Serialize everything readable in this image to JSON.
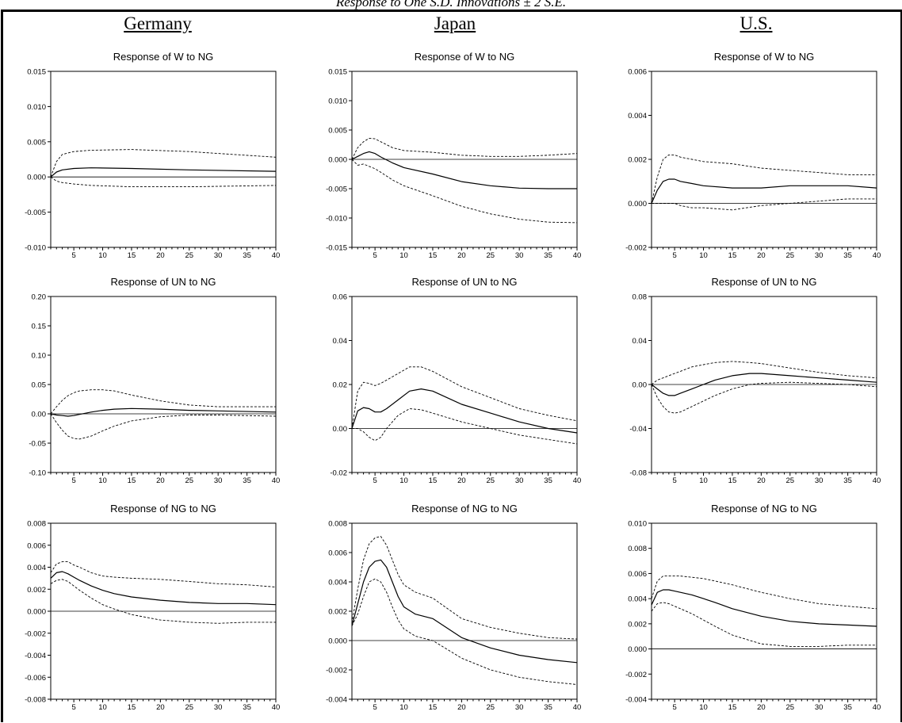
{
  "figure_title": "Response to One S.D. Innovations ± 2 S.E.",
  "countries": [
    "Germany",
    "Japan",
    "U.S."
  ],
  "chart_data": [
    {
      "type": "line",
      "country": "Germany",
      "title": "Response of W to NG",
      "xlim": [
        1,
        40
      ],
      "ylim": [
        -0.01,
        0.015
      ],
      "x_ticks": [
        5,
        10,
        15,
        20,
        25,
        30,
        35,
        40
      ],
      "y_ticks": [
        -0.01,
        -0.005,
        0,
        0.005,
        0.01,
        0.015
      ],
      "y_tick_labels": [
        "-0.010",
        "-0.005",
        "0.000",
        "0.005",
        "0.010",
        "0.015"
      ],
      "x": [
        1,
        2,
        3,
        5,
        8,
        15,
        25,
        40
      ],
      "series": [
        {
          "style": "solid",
          "values": [
            0,
            0.0007,
            0.001,
            0.0012,
            0.0013,
            0.0012,
            0.001,
            0.0008
          ]
        },
        {
          "style": "dashed",
          "values": [
            0,
            0.0022,
            0.0032,
            0.0036,
            0.0038,
            0.0039,
            0.0036,
            0.0028
          ]
        },
        {
          "style": "dashed",
          "values": [
            0,
            -0.0006,
            -0.0008,
            -0.001,
            -0.0012,
            -0.0014,
            -0.0014,
            -0.0012
          ]
        }
      ]
    },
    {
      "type": "line",
      "country": "Japan",
      "title": "Response of W to NG",
      "xlim": [
        1,
        40
      ],
      "ylim": [
        -0.015,
        0.015
      ],
      "x_ticks": [
        5,
        10,
        15,
        20,
        25,
        30,
        35,
        40
      ],
      "y_ticks": [
        -0.015,
        -0.01,
        -0.005,
        0,
        0.005,
        0.01,
        0.015
      ],
      "y_tick_labels": [
        "-0.015",
        "-0.010",
        "-0.005",
        "0.000",
        "0.005",
        "0.010",
        "0.015"
      ],
      "x": [
        1,
        2,
        3,
        4,
        5,
        6,
        8,
        10,
        15,
        20,
        25,
        30,
        35,
        40
      ],
      "series": [
        {
          "style": "solid",
          "values": [
            0,
            0.0005,
            0.001,
            0.0013,
            0.001,
            0.0004,
            -0.0006,
            -0.0014,
            -0.0025,
            -0.0038,
            -0.0045,
            -0.0049,
            -0.005,
            -0.005
          ]
        },
        {
          "style": "dashed",
          "values": [
            0,
            0.002,
            0.003,
            0.0036,
            0.0035,
            0.003,
            0.002,
            0.0015,
            0.0012,
            0.0007,
            0.0005,
            0.0005,
            0.0007,
            0.001
          ]
        },
        {
          "style": "dashed",
          "values": [
            0,
            -0.001,
            -0.0008,
            -0.0012,
            -0.0016,
            -0.0022,
            -0.0035,
            -0.0045,
            -0.0062,
            -0.008,
            -0.0093,
            -0.0102,
            -0.0107,
            -0.0108
          ]
        }
      ]
    },
    {
      "type": "line",
      "country": "U.S.",
      "title": "Response of W to NG",
      "xlim": [
        1,
        40
      ],
      "ylim": [
        -0.002,
        0.006
      ],
      "x_ticks": [
        5,
        10,
        15,
        20,
        25,
        30,
        35,
        40
      ],
      "y_ticks": [
        -0.002,
        0,
        0.002,
        0.004,
        0.006
      ],
      "y_tick_labels": [
        "-0.002",
        "0.000",
        "0.002",
        "0.004",
        "0.006"
      ],
      "x": [
        1,
        2,
        3,
        4,
        5,
        6,
        8,
        10,
        15,
        20,
        25,
        30,
        35,
        40
      ],
      "series": [
        {
          "style": "solid",
          "values": [
            0,
            0.0006,
            0.001,
            0.0011,
            0.0011,
            0.001,
            0.0009,
            0.0008,
            0.0007,
            0.0007,
            0.0008,
            0.0008,
            0.0008,
            0.0007
          ]
        },
        {
          "style": "dashed",
          "values": [
            0,
            0.0012,
            0.002,
            0.0022,
            0.0022,
            0.0021,
            0.002,
            0.0019,
            0.0018,
            0.0016,
            0.0015,
            0.0014,
            0.0013,
            0.0013
          ]
        },
        {
          "style": "dashed",
          "values": [
            0,
            0,
            0,
            0,
            0,
            -0.0001,
            -0.0002,
            -0.0002,
            -0.0003,
            -0.0001,
            0,
            0.0001,
            0.0002,
            0.0002
          ]
        }
      ]
    },
    {
      "type": "line",
      "country": "Germany",
      "title": "Response of UN to NG",
      "xlim": [
        1,
        40
      ],
      "ylim": [
        -0.1,
        0.2
      ],
      "x_ticks": [
        5,
        10,
        15,
        20,
        25,
        30,
        35,
        40
      ],
      "y_ticks": [
        -0.1,
        -0.05,
        0,
        0.05,
        0.1,
        0.15,
        0.2
      ],
      "y_tick_labels": [
        "-0.10",
        "-0.05",
        "0.00",
        "0.05",
        "0.10",
        "0.15",
        "0.20"
      ],
      "x": [
        1,
        2,
        3,
        4,
        5,
        6,
        8,
        10,
        12,
        15,
        20,
        25,
        30,
        40
      ],
      "series": [
        {
          "style": "solid",
          "values": [
            0,
            -0.002,
            -0.003,
            -0.004,
            -0.003,
            -0.001,
            0.003,
            0.006,
            0.008,
            0.009,
            0.008,
            0.006,
            0.005,
            0.003
          ]
        },
        {
          "style": "dashed",
          "values": [
            0,
            0.012,
            0.023,
            0.031,
            0.036,
            0.039,
            0.041,
            0.041,
            0.039,
            0.032,
            0.022,
            0.015,
            0.012,
            0.012
          ]
        },
        {
          "style": "dashed",
          "values": [
            0,
            -0.015,
            -0.028,
            -0.038,
            -0.042,
            -0.043,
            -0.038,
            -0.029,
            -0.021,
            -0.012,
            -0.005,
            -0.002,
            -0.002,
            -0.004
          ]
        }
      ]
    },
    {
      "type": "line",
      "country": "Japan",
      "title": "Response of UN to NG",
      "xlim": [
        1,
        40
      ],
      "ylim": [
        -0.02,
        0.06
      ],
      "x_ticks": [
        5,
        10,
        15,
        20,
        25,
        30,
        35,
        40
      ],
      "y_ticks": [
        -0.02,
        0,
        0.02,
        0.04,
        0.06
      ],
      "y_tick_labels": [
        "-0.02",
        "0.00",
        "0.02",
        "0.04",
        "0.06"
      ],
      "x": [
        1,
        2,
        3,
        4,
        5,
        6,
        7,
        9,
        11,
        13,
        15,
        20,
        25,
        30,
        35,
        40
      ],
      "series": [
        {
          "style": "solid",
          "values": [
            0,
            0.008,
            0.0095,
            0.009,
            0.0075,
            0.0075,
            0.009,
            0.013,
            0.017,
            0.018,
            0.017,
            0.011,
            0.007,
            0.003,
            0,
            -0.002
          ]
        },
        {
          "style": "dashed",
          "values": [
            0,
            0.017,
            0.021,
            0.0205,
            0.0195,
            0.0205,
            0.022,
            0.025,
            0.028,
            0.028,
            0.026,
            0.019,
            0.014,
            0.009,
            0.006,
            0.0035
          ]
        },
        {
          "style": "dashed",
          "values": [
            0,
            0,
            -0.0015,
            -0.004,
            -0.0055,
            -0.004,
            0,
            0.006,
            0.009,
            0.0085,
            0.007,
            0.003,
            0,
            -0.003,
            -0.005,
            -0.007
          ]
        }
      ]
    },
    {
      "type": "line",
      "country": "U.S.",
      "title": "Response of UN to NG",
      "xlim": [
        1,
        40
      ],
      "ylim": [
        -0.08,
        0.08
      ],
      "x_ticks": [
        5,
        10,
        15,
        20,
        25,
        30,
        35,
        40
      ],
      "y_ticks": [
        -0.08,
        -0.04,
        0,
        0.04,
        0.08
      ],
      "y_tick_labels": [
        "-0.08",
        "-0.04",
        "0.00",
        "0.04",
        "0.08"
      ],
      "x": [
        1,
        2,
        3,
        4,
        5,
        6,
        8,
        10,
        12,
        15,
        18,
        20,
        25,
        30,
        35,
        40
      ],
      "series": [
        {
          "style": "solid",
          "values": [
            0,
            -0.004,
            -0.008,
            -0.01,
            -0.01,
            -0.008,
            -0.004,
            0,
            0.004,
            0.008,
            0.01,
            0.01,
            0.008,
            0.006,
            0.004,
            0.002
          ]
        },
        {
          "style": "dashed",
          "values": [
            0,
            0.004,
            0.006,
            0.008,
            0.01,
            0.012,
            0.016,
            0.018,
            0.02,
            0.021,
            0.02,
            0.019,
            0.015,
            0.011,
            0.008,
            0.006
          ]
        },
        {
          "style": "dashed",
          "values": [
            0,
            -0.012,
            -0.02,
            -0.025,
            -0.026,
            -0.025,
            -0.02,
            -0.015,
            -0.01,
            -0.004,
            0,
            0.001,
            0.002,
            0.001,
            0,
            -0.002
          ]
        }
      ]
    },
    {
      "type": "line",
      "country": "Germany",
      "title": "Response of NG to NG",
      "xlim": [
        1,
        40
      ],
      "ylim": [
        -0.008,
        0.008
      ],
      "x_ticks": [
        5,
        10,
        15,
        20,
        25,
        30,
        35,
        40
      ],
      "y_ticks": [
        -0.008,
        -0.006,
        -0.004,
        -0.002,
        0,
        0.002,
        0.004,
        0.006,
        0.008
      ],
      "y_tick_labels": [
        "-0.008",
        "-0.006",
        "-0.004",
        "-0.002",
        "0.000",
        "0.002",
        "0.004",
        "0.006",
        "0.008"
      ],
      "x": [
        1,
        2,
        3,
        4,
        5,
        6,
        8,
        10,
        12,
        15,
        20,
        25,
        30,
        35,
        40
      ],
      "series": [
        {
          "style": "solid",
          "values": [
            0.003,
            0.0035,
            0.0036,
            0.0034,
            0.0031,
            0.0028,
            0.0023,
            0.0019,
            0.0016,
            0.0013,
            0.001,
            0.0008,
            0.0007,
            0.0007,
            0.0006
          ]
        },
        {
          "style": "dashed",
          "values": [
            0.0035,
            0.0043,
            0.0045,
            0.0045,
            0.0042,
            0.004,
            0.0035,
            0.0032,
            0.0031,
            0.003,
            0.0029,
            0.0027,
            0.0025,
            0.0024,
            0.0022
          ]
        },
        {
          "style": "dashed",
          "values": [
            0.0025,
            0.0028,
            0.0029,
            0.0027,
            0.0023,
            0.0019,
            0.0012,
            0.0006,
            0.0002,
            -0.0003,
            -0.0008,
            -0.001,
            -0.0011,
            -0.001,
            -0.001
          ]
        }
      ]
    },
    {
      "type": "line",
      "country": "Japan",
      "title": "Response of NG to NG",
      "xlim": [
        1,
        40
      ],
      "ylim": [
        -0.004,
        0.008
      ],
      "x_ticks": [
        5,
        10,
        15,
        20,
        25,
        30,
        35,
        40
      ],
      "y_ticks": [
        -0.004,
        -0.002,
        0,
        0.002,
        0.004,
        0.006,
        0.008
      ],
      "y_tick_labels": [
        "-0.004",
        "-0.002",
        "0.000",
        "0.002",
        "0.004",
        "0.006",
        "0.008"
      ],
      "x": [
        1,
        2,
        3,
        4,
        5,
        6,
        7,
        8,
        9,
        10,
        12,
        15,
        20,
        25,
        30,
        35,
        40
      ],
      "series": [
        {
          "style": "solid",
          "values": [
            0.001,
            0.0025,
            0.004,
            0.005,
            0.0054,
            0.0055,
            0.005,
            0.004,
            0.003,
            0.0023,
            0.0018,
            0.0015,
            0.0002,
            -0.0005,
            -0.001,
            -0.0013,
            -0.0015
          ]
        },
        {
          "style": "dashed",
          "values": [
            0.0012,
            0.0035,
            0.0055,
            0.0066,
            0.007,
            0.0071,
            0.0065,
            0.0055,
            0.0045,
            0.0038,
            0.0033,
            0.0029,
            0.0015,
            0.0009,
            0.0005,
            0.0002,
            0.0001
          ]
        },
        {
          "style": "dashed",
          "values": [
            0.001,
            0.0018,
            0.003,
            0.004,
            0.0042,
            0.004,
            0.0033,
            0.0023,
            0.0014,
            0.0008,
            0.0003,
            0,
            -0.0012,
            -0.002,
            -0.0025,
            -0.0028,
            -0.003
          ]
        }
      ]
    },
    {
      "type": "line",
      "country": "U.S.",
      "title": "Response of NG to NG",
      "xlim": [
        1,
        40
      ],
      "ylim": [
        -0.004,
        0.01
      ],
      "x_ticks": [
        5,
        10,
        15,
        20,
        25,
        30,
        35,
        40
      ],
      "y_ticks": [
        -0.004,
        -0.002,
        0,
        0.002,
        0.004,
        0.006,
        0.008,
        0.01
      ],
      "y_tick_labels": [
        "-0.004",
        "-0.002",
        "0.000",
        "0.002",
        "0.004",
        "0.006",
        "0.008",
        "0.010"
      ],
      "x": [
        1,
        2,
        3,
        4,
        5,
        6,
        8,
        10,
        12,
        15,
        20,
        25,
        30,
        35,
        40
      ],
      "series": [
        {
          "style": "solid",
          "values": [
            0.0035,
            0.0045,
            0.0047,
            0.0047,
            0.0046,
            0.0045,
            0.0043,
            0.004,
            0.0037,
            0.0032,
            0.0026,
            0.0022,
            0.002,
            0.0019,
            0.0018
          ]
        },
        {
          "style": "dashed",
          "values": [
            0.004,
            0.0054,
            0.0058,
            0.0058,
            0.0058,
            0.0058,
            0.0057,
            0.0056,
            0.0054,
            0.0051,
            0.0045,
            0.004,
            0.0036,
            0.0034,
            0.0032
          ]
        },
        {
          "style": "dashed",
          "values": [
            0.003,
            0.0036,
            0.0037,
            0.0036,
            0.0034,
            0.0032,
            0.0028,
            0.0023,
            0.0018,
            0.0011,
            0.0004,
            0.0002,
            0.0002,
            0.0003,
            0.0003
          ]
        }
      ]
    }
  ]
}
